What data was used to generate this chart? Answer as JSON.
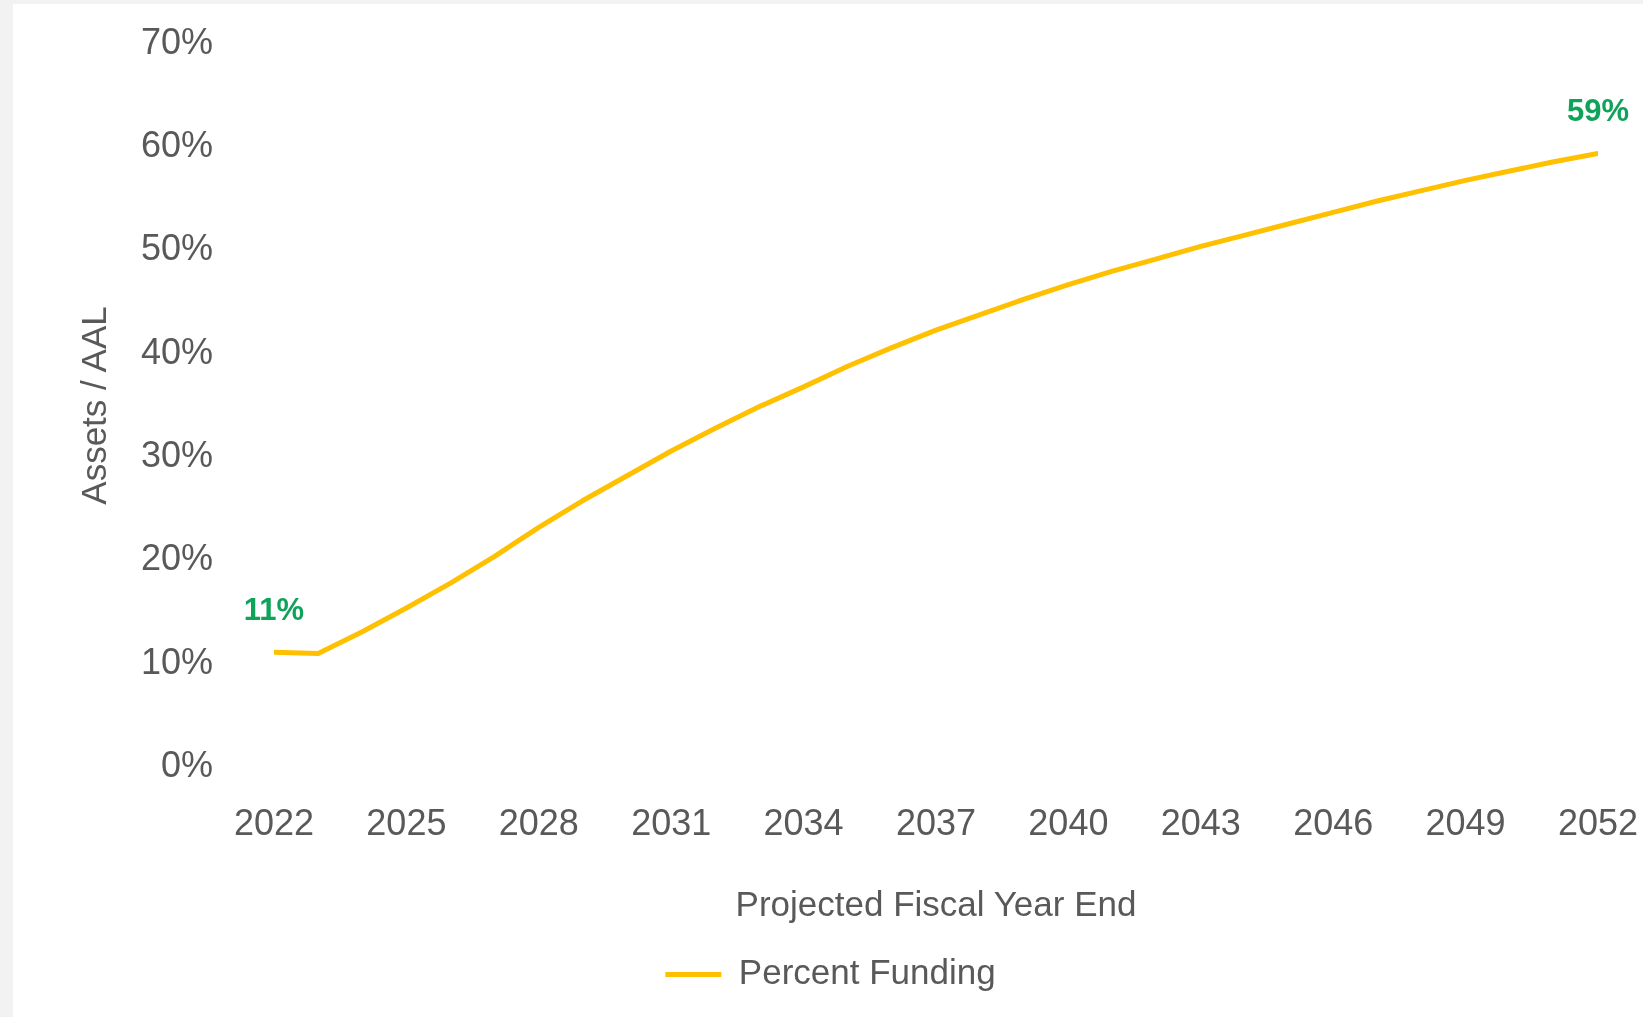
{
  "chart_data": {
    "type": "line",
    "xlabel": "Projected Fiscal Year End",
    "ylabel": "Assets / AAL",
    "x": [
      2022,
      2023,
      2024,
      2025,
      2026,
      2027,
      2028,
      2029,
      2030,
      2031,
      2032,
      2033,
      2034,
      2035,
      2036,
      2037,
      2038,
      2039,
      2040,
      2041,
      2042,
      2043,
      2044,
      2045,
      2046,
      2047,
      2048,
      2049,
      2050,
      2051,
      2052
    ],
    "series": [
      {
        "name": "Percent Funding",
        "color": "#ffc000",
        "values": [
          11.1,
          11.0,
          13.1,
          15.4,
          17.8,
          20.4,
          23.2,
          25.8,
          28.2,
          30.6,
          32.8,
          34.9,
          36.8,
          38.8,
          40.6,
          42.3,
          43.8,
          45.3,
          46.7,
          48.0,
          49.2,
          50.4,
          51.5,
          52.6,
          53.7,
          54.8,
          55.8,
          56.8,
          57.7,
          58.6,
          59.4
        ],
        "value_labels": [
          "11%",
          null,
          null,
          null,
          null,
          null,
          null,
          null,
          null,
          null,
          null,
          null,
          null,
          null,
          null,
          null,
          null,
          null,
          null,
          null,
          null,
          null,
          null,
          null,
          null,
          null,
          null,
          null,
          null,
          null,
          "59%"
        ]
      }
    ],
    "xlim": [
      2022,
      2052
    ],
    "xticks": [
      2022,
      2025,
      2028,
      2031,
      2034,
      2037,
      2040,
      2043,
      2046,
      2049,
      2052
    ],
    "ylim": [
      0,
      70
    ],
    "yticks": [
      {
        "value": 0,
        "label": "0%"
      },
      {
        "value": 10,
        "label": "10%"
      },
      {
        "value": 20,
        "label": "20%"
      },
      {
        "value": 30,
        "label": "30%"
      },
      {
        "value": 40,
        "label": "40%"
      },
      {
        "value": 50,
        "label": "50%"
      },
      {
        "value": 60,
        "label": "60%"
      },
      {
        "value": 70,
        "label": "70%"
      }
    ],
    "grid": false,
    "legend": "bottom",
    "marker": "none",
    "line_style": "solid"
  }
}
